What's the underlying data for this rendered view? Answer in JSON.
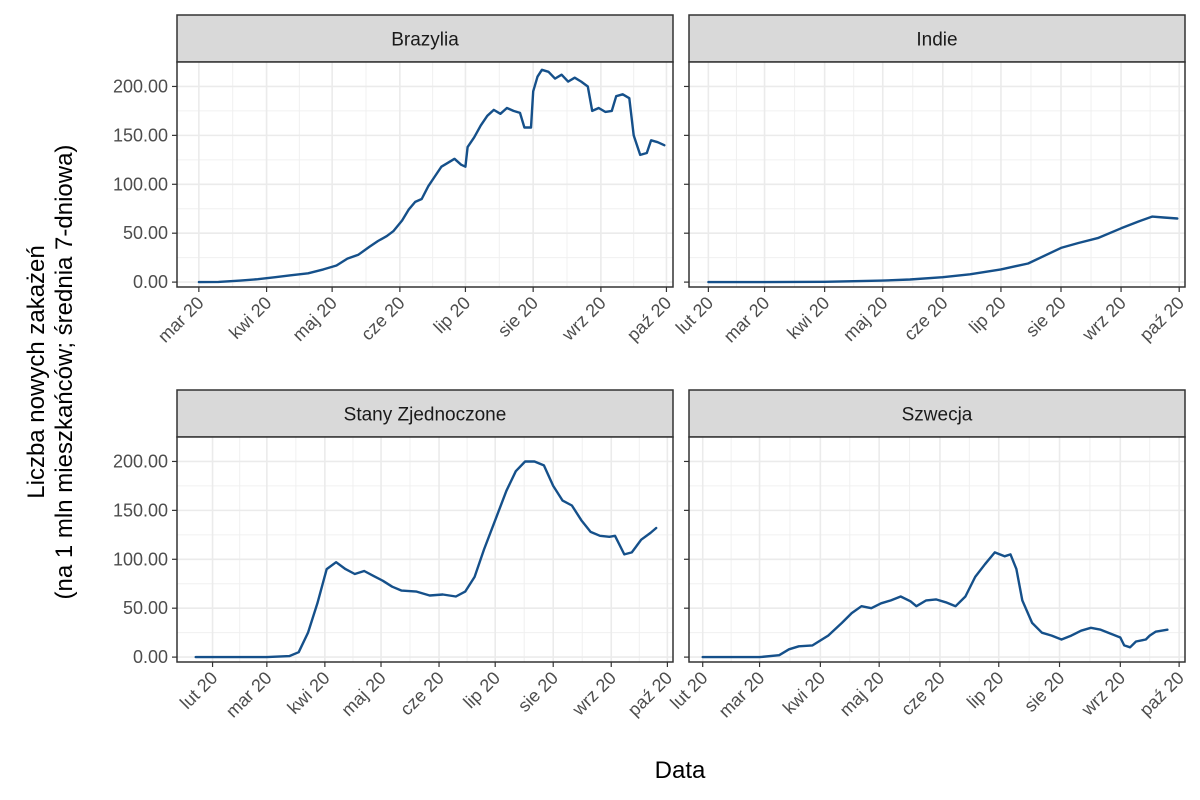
{
  "chart_data": {
    "type": "line",
    "xlabel": "Data",
    "ylabel_line1": "Liczba nowych zakażeń",
    "ylabel_line2": "(na 1 mln mieszkańców; średnia 7-dniowa)",
    "ylim": [
      -5,
      225
    ],
    "yticks": [
      0,
      50,
      100,
      150,
      200
    ],
    "ytick_labels": [
      "0.00",
      "50.00",
      "100.00",
      "150.00",
      "200.00"
    ],
    "line_color": "#15508a",
    "grid": true,
    "panels": [
      {
        "name": "Brazylia",
        "xlim": [
          "2020-02-20",
          "2020-10-04"
        ],
        "xticks": [
          "2020-03-01",
          "2020-04-01",
          "2020-05-01",
          "2020-06-01",
          "2020-07-01",
          "2020-08-01",
          "2020-09-01",
          "2020-10-01"
        ],
        "xtick_labels": [
          "mar 20",
          "kwi 20",
          "maj 20",
          "cze 20",
          "lip 20",
          "sie 20",
          "wrz 20",
          "paź 20"
        ],
        "points": [
          [
            "2020-03-01",
            0
          ],
          [
            "2020-03-10",
            0.2
          ],
          [
            "2020-03-20",
            1.5
          ],
          [
            "2020-03-28",
            3
          ],
          [
            "2020-04-05",
            5
          ],
          [
            "2020-04-12",
            7
          ],
          [
            "2020-04-20",
            9
          ],
          [
            "2020-04-27",
            13
          ],
          [
            "2020-05-03",
            17
          ],
          [
            "2020-05-08",
            24
          ],
          [
            "2020-05-13",
            28
          ],
          [
            "2020-05-18",
            36
          ],
          [
            "2020-05-22",
            42
          ],
          [
            "2020-05-26",
            47
          ],
          [
            "2020-05-29",
            52
          ],
          [
            "2020-06-02",
            63
          ],
          [
            "2020-06-05",
            74
          ],
          [
            "2020-06-08",
            82
          ],
          [
            "2020-06-11",
            85
          ],
          [
            "2020-06-14",
            98
          ],
          [
            "2020-06-17",
            108
          ],
          [
            "2020-06-20",
            118
          ],
          [
            "2020-06-23",
            122
          ],
          [
            "2020-06-26",
            126
          ],
          [
            "2020-06-29",
            120
          ],
          [
            "2020-07-01",
            118
          ],
          [
            "2020-07-02",
            138
          ],
          [
            "2020-07-05",
            148
          ],
          [
            "2020-07-08",
            160
          ],
          [
            "2020-07-11",
            170
          ],
          [
            "2020-07-14",
            176
          ],
          [
            "2020-07-17",
            172
          ],
          [
            "2020-07-20",
            178
          ],
          [
            "2020-07-23",
            175
          ],
          [
            "2020-07-26",
            173
          ],
          [
            "2020-07-28",
            158
          ],
          [
            "2020-07-31",
            158
          ],
          [
            "2020-08-01",
            195
          ],
          [
            "2020-08-03",
            210
          ],
          [
            "2020-08-05",
            217
          ],
          [
            "2020-08-08",
            215
          ],
          [
            "2020-08-11",
            208
          ],
          [
            "2020-08-14",
            212
          ],
          [
            "2020-08-17",
            205
          ],
          [
            "2020-08-20",
            209
          ],
          [
            "2020-08-23",
            205
          ],
          [
            "2020-08-26",
            200
          ],
          [
            "2020-08-28",
            175
          ],
          [
            "2020-08-31",
            178
          ],
          [
            "2020-09-03",
            174
          ],
          [
            "2020-09-06",
            175
          ],
          [
            "2020-09-08",
            190
          ],
          [
            "2020-09-11",
            192
          ],
          [
            "2020-09-14",
            188
          ],
          [
            "2020-09-16",
            150
          ],
          [
            "2020-09-19",
            130
          ],
          [
            "2020-09-22",
            132
          ],
          [
            "2020-09-24",
            145
          ],
          [
            "2020-09-27",
            143
          ],
          [
            "2020-09-30",
            140
          ]
        ]
      },
      {
        "name": "Indie",
        "xlim": [
          "2020-01-22",
          "2020-10-04"
        ],
        "xticks": [
          "2020-02-01",
          "2020-03-01",
          "2020-04-01",
          "2020-05-01",
          "2020-06-01",
          "2020-07-01",
          "2020-08-01",
          "2020-09-01",
          "2020-10-01"
        ],
        "xtick_labels": [
          "lut 20",
          "mar 20",
          "kwi 20",
          "maj 20",
          "cze 20",
          "lip 20",
          "sie 20",
          "wrz 20",
          "paź 20"
        ],
        "points": [
          [
            "2020-02-01",
            0
          ],
          [
            "2020-03-01",
            0
          ],
          [
            "2020-04-01",
            0.3
          ],
          [
            "2020-05-01",
            1.5
          ],
          [
            "2020-05-15",
            2.7
          ],
          [
            "2020-06-01",
            5
          ],
          [
            "2020-06-15",
            8
          ],
          [
            "2020-07-01",
            13
          ],
          [
            "2020-07-15",
            19
          ],
          [
            "2020-08-01",
            35
          ],
          [
            "2020-08-10",
            40
          ],
          [
            "2020-08-20",
            45
          ],
          [
            "2020-09-01",
            55
          ],
          [
            "2020-09-10",
            62
          ],
          [
            "2020-09-17",
            67
          ],
          [
            "2020-09-23",
            66
          ],
          [
            "2020-09-30",
            65
          ]
        ]
      },
      {
        "name": "Stany Zjednoczone",
        "xlim": [
          "2020-01-13",
          "2020-10-04"
        ],
        "xticks": [
          "2020-02-01",
          "2020-03-01",
          "2020-04-01",
          "2020-05-01",
          "2020-06-01",
          "2020-07-01",
          "2020-08-01",
          "2020-09-01",
          "2020-10-01"
        ],
        "xtick_labels": [
          "lut 20",
          "mar 20",
          "kwi 20",
          "maj 20",
          "cze 20",
          "lip 20",
          "sie 20",
          "wrz 20",
          "paź 20"
        ],
        "points": [
          [
            "2020-01-23",
            0
          ],
          [
            "2020-03-01",
            0
          ],
          [
            "2020-03-13",
            1
          ],
          [
            "2020-03-18",
            5
          ],
          [
            "2020-03-23",
            25
          ],
          [
            "2020-03-28",
            55
          ],
          [
            "2020-04-02",
            90
          ],
          [
            "2020-04-07",
            97
          ],
          [
            "2020-04-12",
            90
          ],
          [
            "2020-04-17",
            85
          ],
          [
            "2020-04-22",
            88
          ],
          [
            "2020-04-27",
            83
          ],
          [
            "2020-05-02",
            78
          ],
          [
            "2020-05-07",
            72
          ],
          [
            "2020-05-12",
            68
          ],
          [
            "2020-05-20",
            67
          ],
          [
            "2020-05-27",
            63
          ],
          [
            "2020-06-03",
            64
          ],
          [
            "2020-06-10",
            62
          ],
          [
            "2020-06-15",
            67
          ],
          [
            "2020-06-20",
            82
          ],
          [
            "2020-06-25",
            110
          ],
          [
            "2020-07-01",
            140
          ],
          [
            "2020-07-07",
            170
          ],
          [
            "2020-07-12",
            190
          ],
          [
            "2020-07-17",
            200
          ],
          [
            "2020-07-22",
            200
          ],
          [
            "2020-07-27",
            196
          ],
          [
            "2020-08-01",
            175
          ],
          [
            "2020-08-06",
            160
          ],
          [
            "2020-08-11",
            155
          ],
          [
            "2020-08-16",
            140
          ],
          [
            "2020-08-21",
            128
          ],
          [
            "2020-08-26",
            124
          ],
          [
            "2020-08-31",
            123
          ],
          [
            "2020-09-03",
            124
          ],
          [
            "2020-09-08",
            105
          ],
          [
            "2020-09-12",
            107
          ],
          [
            "2020-09-17",
            120
          ],
          [
            "2020-09-22",
            127
          ],
          [
            "2020-09-25",
            132
          ]
        ]
      },
      {
        "name": "Szwecja",
        "xlim": [
          "2020-01-25",
          "2020-10-04"
        ],
        "xticks": [
          "2020-02-01",
          "2020-03-01",
          "2020-04-01",
          "2020-05-01",
          "2020-06-01",
          "2020-07-01",
          "2020-08-01",
          "2020-09-01",
          "2020-10-01"
        ],
        "xtick_labels": [
          "lut 20",
          "mar 20",
          "kwi 20",
          "maj 20",
          "cze 20",
          "lip 20",
          "sie 20",
          "wrz 20",
          "paź 20"
        ],
        "points": [
          [
            "2020-02-01",
            0
          ],
          [
            "2020-03-01",
            0
          ],
          [
            "2020-03-11",
            2
          ],
          [
            "2020-03-16",
            8
          ],
          [
            "2020-03-21",
            11
          ],
          [
            "2020-03-28",
            12
          ],
          [
            "2020-04-05",
            22
          ],
          [
            "2020-04-12",
            35
          ],
          [
            "2020-04-17",
            45
          ],
          [
            "2020-04-22",
            52
          ],
          [
            "2020-04-27",
            50
          ],
          [
            "2020-05-02",
            55
          ],
          [
            "2020-05-07",
            58
          ],
          [
            "2020-05-12",
            62
          ],
          [
            "2020-05-17",
            57
          ],
          [
            "2020-05-20",
            52
          ],
          [
            "2020-05-25",
            58
          ],
          [
            "2020-05-30",
            59
          ],
          [
            "2020-06-04",
            56
          ],
          [
            "2020-06-09",
            52
          ],
          [
            "2020-06-14",
            62
          ],
          [
            "2020-06-19",
            82
          ],
          [
            "2020-06-24",
            95
          ],
          [
            "2020-06-29",
            107
          ],
          [
            "2020-07-04",
            103
          ],
          [
            "2020-07-07",
            105
          ],
          [
            "2020-07-10",
            90
          ],
          [
            "2020-07-13",
            58
          ],
          [
            "2020-07-18",
            35
          ],
          [
            "2020-07-23",
            25
          ],
          [
            "2020-07-28",
            22
          ],
          [
            "2020-08-02",
            18
          ],
          [
            "2020-08-07",
            22
          ],
          [
            "2020-08-12",
            27
          ],
          [
            "2020-08-17",
            30
          ],
          [
            "2020-08-22",
            28
          ],
          [
            "2020-08-27",
            24
          ],
          [
            "2020-09-01",
            20
          ],
          [
            "2020-09-03",
            12
          ],
          [
            "2020-09-06",
            10
          ],
          [
            "2020-09-09",
            16
          ],
          [
            "2020-09-14",
            18
          ],
          [
            "2020-09-16",
            22
          ],
          [
            "2020-09-19",
            26
          ],
          [
            "2020-09-22",
            27
          ],
          [
            "2020-09-25",
            28
          ]
        ]
      }
    ]
  }
}
